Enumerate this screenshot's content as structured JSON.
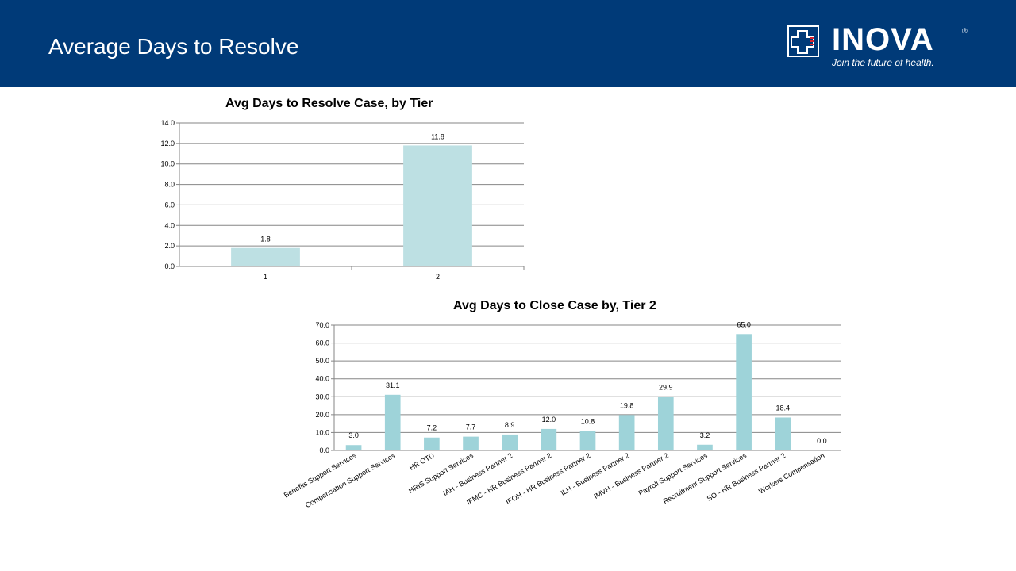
{
  "slide": {
    "title": "Average Days to Resolve"
  },
  "logo": {
    "name": "INOVA",
    "registered": "®",
    "tagline": "Join the future of health."
  },
  "colors": {
    "header": "#003a78",
    "bar1": "#bde0e3",
    "bar2": "#9ed3d9",
    "grid": "#868686"
  },
  "chart_data": [
    {
      "type": "bar",
      "title": "Avg Days to Resolve Case, by Tier",
      "categories": [
        "1",
        "2"
      ],
      "values": [
        1.8,
        11.8
      ],
      "value_labels": [
        "1.8",
        "11.8"
      ],
      "y_ticks": [
        "0.0",
        "2.0",
        "4.0",
        "6.0",
        "8.0",
        "10.0",
        "12.0",
        "14.0"
      ],
      "ylim": [
        0,
        14
      ],
      "grid": true
    },
    {
      "type": "bar",
      "title": "Avg Days to Close Case by, Tier 2",
      "categories": [
        "Benefits Support Services",
        "Compensation Support Services",
        "HR OTD",
        "HRIS Support Services",
        "IAH - Business Partner 2",
        "IFMC - HR Business Partner 2",
        "IFOH - HR Business Partner 2",
        "ILH - Business Partner 2",
        "IMVH - Business Partner 2",
        "Payroll Support Services",
        "Recruitment Support Services",
        "SO - HR Business Partner 2",
        "Workers Compensation"
      ],
      "values": [
        3.0,
        31.1,
        7.2,
        7.7,
        8.9,
        12.0,
        10.8,
        19.8,
        29.9,
        3.2,
        65.0,
        18.4,
        0.0
      ],
      "value_labels": [
        "3.0",
        "31.1",
        "7.2",
        "7.7",
        "8.9",
        "12.0",
        "10.8",
        "19.8",
        "29.9",
        "3.2",
        "65.0",
        "18.4",
        "0.0"
      ],
      "y_ticks": [
        "0.0",
        "10.0",
        "20.0",
        "30.0",
        "40.0",
        "50.0",
        "60.0",
        "70.0"
      ],
      "ylim": [
        0,
        70
      ],
      "grid": true
    }
  ]
}
